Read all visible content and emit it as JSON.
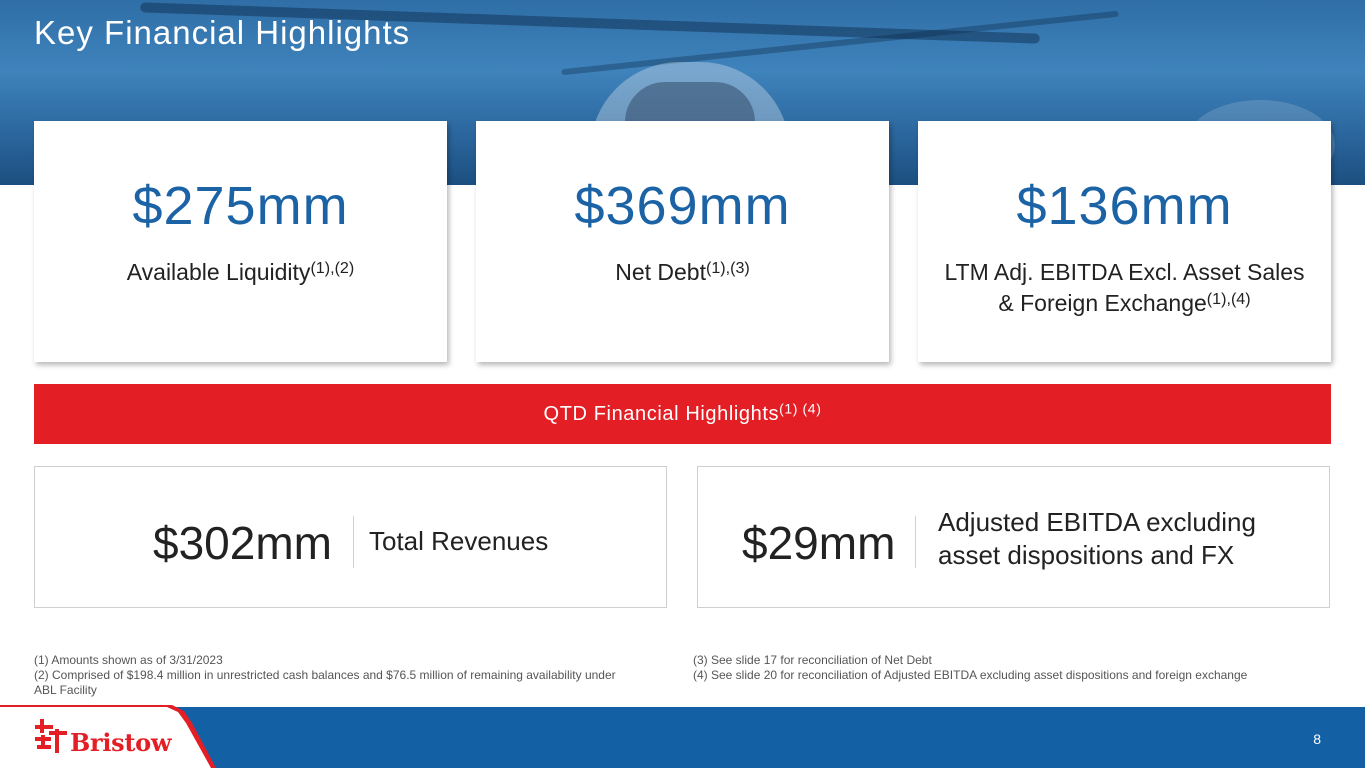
{
  "header": {
    "title": "Key Financial Highlights"
  },
  "cards": [
    {
      "value": "$275mm",
      "label": "Available Liquidity",
      "note": "(1),(2)"
    },
    {
      "value": "$369mm",
      "label": "Net Debt",
      "note": "(1),(3)"
    },
    {
      "value": "$136mm",
      "label": "LTM Adj. EBITDA Excl. Asset Sales & Foreign Exchange",
      "note": "(1),(4)"
    }
  ],
  "band": {
    "label": "QTD Financial Highlights",
    "note": "(1) (4)"
  },
  "qtd": [
    {
      "value": "$302mm",
      "label": "Total Revenues"
    },
    {
      "value": "$29mm",
      "label": "Adjusted EBITDA excluding asset dispositions and FX"
    }
  ],
  "footnotes": {
    "left": [
      "(1) Amounts shown as of 3/31/2023",
      "(2) Comprised of $198.4 million in unrestricted cash balances and $76.5 million of remaining availability under ABL Facility"
    ],
    "right": [
      "(3) See slide 17 for reconciliation of Net Debt",
      "(4) See slide 20 for reconciliation of Adjusted EBITDA excluding asset dispositions and foreign exchange"
    ]
  },
  "footer": {
    "logo_text": "Bristow",
    "logo_icon": "bristow-logo-icon",
    "page_number": "8"
  },
  "colors": {
    "brand_blue": "#1460a5",
    "value_blue": "#1b63a5",
    "brand_red": "#e31e24"
  }
}
